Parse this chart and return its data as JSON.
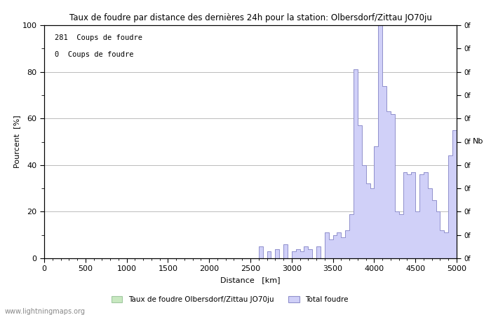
{
  "title": "Taux de foudre par distance des dernières 24h pour la station: Olbersdorf/Zittau JO70ju",
  "xlabel": "Distance   [km]",
  "ylabel_left": "Pourcent  [%]",
  "ylabel_right": "Nb",
  "xlim": [
    0,
    5000
  ],
  "ylim": [
    0,
    100
  ],
  "xticks": [
    0,
    500,
    1000,
    1500,
    2000,
    2500,
    3000,
    3500,
    4000,
    4500,
    5000
  ],
  "yticks_left": [
    0,
    20,
    40,
    60,
    80,
    100
  ],
  "annotation_line1": "281  Coups de foudre",
  "annotation_line2": "0  Coups de foudre",
  "legend_local": "Taux de foudre Olbersdorf/Zittau JO70ju",
  "legend_total": "Total foudre",
  "watermark": "www.lightningmaps.org",
  "local_fill_color": "#c8e8c0",
  "local_line_color": "#a0c8a0",
  "total_fill_color": "#d0d0f8",
  "total_line_color": "#9090cc",
  "bg_color": "#ffffff",
  "grid_color": "#bbbbbb",
  "right_tick_labels": [
    "0f",
    "0f",
    "0f",
    "0f",
    "0f",
    "0f",
    "0f",
    "0f",
    "0f",
    "0f",
    "0f"
  ]
}
